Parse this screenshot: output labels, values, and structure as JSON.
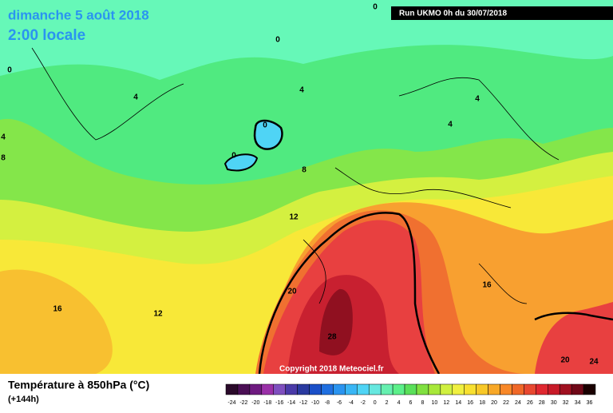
{
  "header": {
    "date": "dimanche 5 août 2018",
    "time": "2:00 locale",
    "run": "Run UKMO 0h du 30/07/2018"
  },
  "copyright": "Copyright 2018 Meteociel.fr",
  "footer": {
    "title": "Température à 850hPa (°C)",
    "lead": "(+144h)"
  },
  "contour_labels": [
    0,
    0,
    0,
    4,
    4,
    4,
    4,
    0,
    0,
    8,
    12,
    16,
    12,
    20,
    16,
    28,
    20,
    24,
    4,
    8
  ],
  "colorbar": {
    "ticks": [
      -24,
      -22,
      -20,
      -18,
      -16,
      -14,
      -12,
      -10,
      -8,
      -6,
      -4,
      -2,
      0,
      2,
      4,
      6,
      8,
      10,
      12,
      14,
      16,
      18,
      20,
      22,
      24,
      26,
      28,
      30,
      32,
      34,
      36
    ],
    "colors": [
      "#2a0a2a",
      "#4b0f55",
      "#6e1a80",
      "#9a30a8",
      "#7f4fbf",
      "#4a3aa8",
      "#2a3aa0",
      "#1a4fc8",
      "#1f6fe0",
      "#2a94f0",
      "#39b6f5",
      "#4fd4f5",
      "#66e8e0",
      "#66f0b0",
      "#5cf08a",
      "#5ae05a",
      "#80e040",
      "#a8e83a",
      "#d0f040",
      "#f0f040",
      "#f8e030",
      "#f8c828",
      "#f8a828",
      "#f88828",
      "#f06828",
      "#e84830",
      "#e02830",
      "#c81a28",
      "#a01020",
      "#700818",
      "#1a0000"
    ]
  }
}
